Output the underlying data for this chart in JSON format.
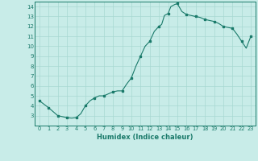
{
  "line_x": [
    0,
    1,
    2,
    3,
    3.5,
    4,
    4.5,
    5,
    5.5,
    6,
    6.5,
    7,
    7.5,
    8,
    8.5,
    9,
    9.5,
    10,
    10.5,
    11,
    11.5,
    12,
    12.5,
    13,
    13.3,
    13.6,
    14,
    14.3,
    14.7,
    15,
    15.5,
    16,
    16.5,
    17,
    17.5,
    18,
    18.5,
    19,
    19.5,
    20,
    20.5,
    21,
    21.5,
    22,
    22.5,
    23
  ],
  "line_y": [
    4.5,
    3.8,
    3.0,
    2.8,
    2.75,
    2.8,
    3.2,
    4.0,
    4.5,
    4.8,
    5.0,
    5.0,
    5.2,
    5.4,
    5.5,
    5.5,
    6.2,
    6.8,
    8.0,
    9.0,
    10.0,
    10.5,
    11.5,
    12.0,
    12.2,
    13.1,
    13.3,
    14.0,
    14.2,
    14.3,
    13.5,
    13.2,
    13.1,
    13.0,
    12.9,
    12.7,
    12.6,
    12.5,
    12.3,
    12.0,
    11.9,
    11.8,
    11.2,
    10.5,
    9.8,
    11.0
  ],
  "marker_x": [
    0,
    1,
    2,
    3,
    4,
    5,
    6,
    7,
    8,
    9,
    10,
    11,
    12,
    13,
    14,
    15,
    16,
    17,
    18,
    19,
    20,
    21,
    22,
    23
  ],
  "marker_y": [
    4.5,
    3.8,
    3.0,
    2.8,
    2.8,
    4.0,
    4.8,
    5.0,
    5.4,
    5.5,
    6.8,
    9.0,
    10.5,
    12.0,
    13.3,
    14.3,
    13.2,
    13.0,
    12.7,
    12.5,
    12.0,
    11.8,
    10.5,
    11.0
  ],
  "line_color": "#1a7a6a",
  "marker_color": "#1a7a6a",
  "bg_color": "#c8ece8",
  "grid_color": "#a8d8d2",
  "axis_color": "#1a7a6a",
  "xlabel": "Humidex (Indice chaleur)",
  "xlim": [
    -0.5,
    23.5
  ],
  "ylim": [
    2.0,
    14.5
  ],
  "yticks": [
    3,
    4,
    5,
    6,
    7,
    8,
    9,
    10,
    11,
    12,
    13,
    14
  ],
  "xticks": [
    0,
    1,
    2,
    3,
    4,
    5,
    6,
    7,
    8,
    9,
    10,
    11,
    12,
    13,
    14,
    15,
    16,
    17,
    18,
    19,
    20,
    21,
    22,
    23
  ]
}
